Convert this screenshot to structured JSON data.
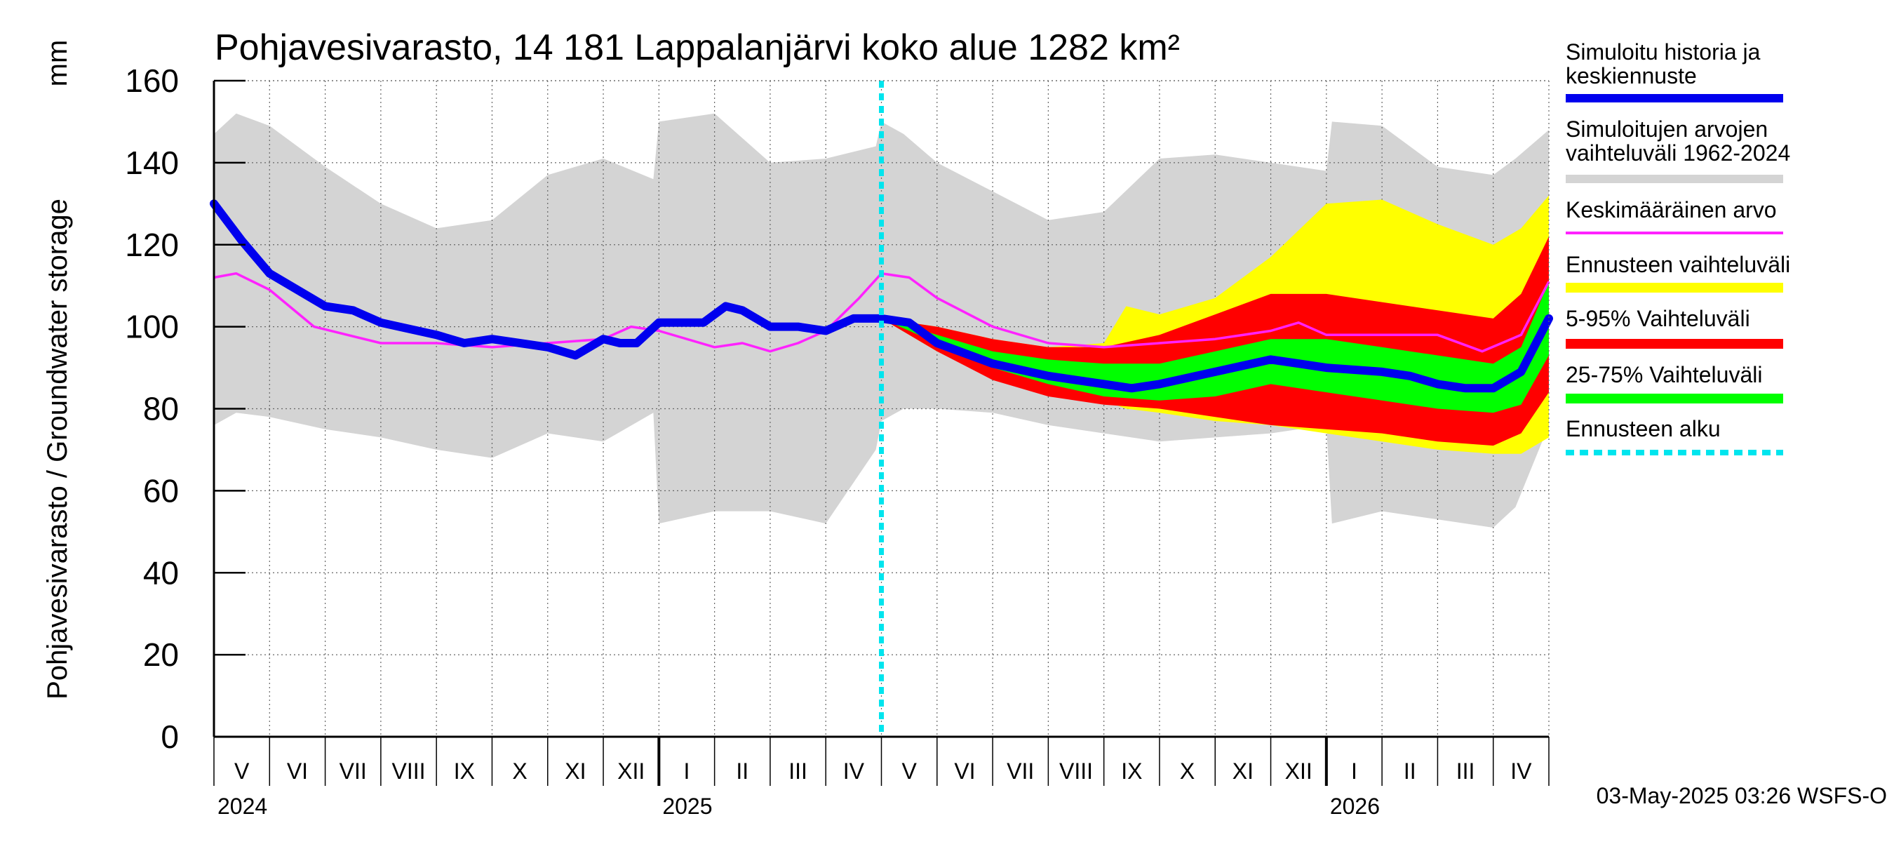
{
  "chart_data": {
    "type": "area",
    "title": "Pohjavesivarasto, 14 181 Lappalanjärvi koko alue 1282 km²",
    "ylabel": "Pohjavesivarasto / Groundwater storage",
    "yunit": "mm",
    "ylim": [
      0,
      160
    ],
    "yticks": [
      "0",
      "20",
      "40",
      "60",
      "80",
      "100",
      "120",
      "140",
      "160"
    ],
    "x_months": [
      "V",
      "VI",
      "VII",
      "VIII",
      "IX",
      "X",
      "XI",
      "XII",
      "I",
      "II",
      "III",
      "IV",
      "V",
      "VI",
      "VII",
      "VIII",
      "IX",
      "X",
      "XI",
      "XII",
      "I",
      "II",
      "III",
      "IV"
    ],
    "x_years": [
      "2024",
      "2025",
      "2026"
    ],
    "forecast_start_month_index": 12.0,
    "legend": [
      {
        "label": "Simuloitu historia ja\nkeskiennuste",
        "color": "#0000ee"
      },
      {
        "label": "Simuloitujen arvojen\nvaihteluväli 1962-2024",
        "color": "#d4d4d4"
      },
      {
        "label": "Keskimääräinen arvo",
        "color": "#ff22ff"
      },
      {
        "label": "Ennusteen vaihteluväli",
        "color": "#ffff00"
      },
      {
        "label": "5-95% Vaihteluväli",
        "color": "#ff0000"
      },
      {
        "label": "25-75% Vaihteluväli",
        "color": "#00ff00"
      },
      {
        "label": "Ennusteen alku",
        "color": "#00e5ee"
      }
    ],
    "timestamp": "03-May-2025 03:26 WSFS-O",
    "series": {
      "history_range": {
        "x": [
          0,
          0.4,
          1.0,
          2.0,
          3.0,
          4.0,
          5.0,
          6.0,
          7.0,
          7.9,
          8.0,
          9.0,
          10.0,
          11.0,
          11.9,
          12.0,
          12.4,
          13.0,
          14.0,
          15.0,
          16.0,
          17.0,
          18.0,
          19.0,
          20.0,
          20.1,
          21.0,
          22.0,
          23.0,
          23.4,
          24.0
        ],
        "upper": [
          147,
          152,
          149,
          139,
          130,
          124,
          126,
          137,
          141,
          136,
          150,
          152,
          140,
          141,
          144,
          150,
          147,
          140,
          133,
          126,
          128,
          141,
          142,
          140,
          138,
          150,
          149,
          139,
          137,
          141,
          148
        ],
        "lower": [
          76,
          79,
          78,
          75,
          73,
          70,
          68,
          74,
          72,
          79,
          52,
          55,
          55,
          52,
          70,
          77,
          80,
          80,
          79,
          76,
          74,
          72,
          73,
          74,
          76,
          52,
          55,
          53,
          51,
          56,
          76
        ]
      },
      "forecast_range": {
        "x": [
          12.0,
          13.0,
          14.0,
          15.0,
          16.0,
          16.4,
          17.0,
          18.0,
          19.0,
          20.0,
          21.0,
          22.0,
          23.0,
          23.5,
          24.0
        ],
        "upper": [
          102,
          100,
          97,
          95,
          96,
          105,
          103,
          107,
          117,
          130,
          131,
          125,
          120,
          124,
          132
        ],
        "lower": [
          102,
          94,
          88,
          84,
          82,
          80,
          79,
          77,
          76,
          74,
          72,
          70,
          69,
          69,
          73
        ]
      },
      "p5_95": {
        "x": [
          12.0,
          13.0,
          14.0,
          15.0,
          16.0,
          17.0,
          18.0,
          19.0,
          20.0,
          21.0,
          22.0,
          23.0,
          23.5,
          24.0
        ],
        "upper": [
          102,
          100,
          97,
          95,
          95,
          98,
          103,
          108,
          108,
          106,
          104,
          102,
          108,
          122
        ],
        "lower": [
          102,
          94,
          87,
          83,
          81,
          80,
          78,
          76,
          75,
          74,
          72,
          71,
          74,
          84
        ]
      },
      "p25_75": {
        "x": [
          12.0,
          13.0,
          14.0,
          15.0,
          16.0,
          17.0,
          18.0,
          19.0,
          20.0,
          21.0,
          22.0,
          23.0,
          23.5,
          24.0
        ],
        "upper": [
          102,
          98,
          94,
          92,
          91,
          91,
          94,
          97,
          97,
          95,
          93,
          91,
          95,
          111
        ],
        "lower": [
          102,
          96,
          90,
          86,
          83,
          82,
          83,
          86,
          84,
          82,
          80,
          79,
          81,
          93
        ]
      },
      "mean": {
        "x": [
          0,
          0.4,
          1.0,
          1.8,
          3.0,
          4.0,
          5.0,
          6.0,
          7.0,
          7.5,
          8.0,
          9.0,
          9.5,
          10.0,
          10.5,
          11.0,
          11.6,
          12.0,
          12.5,
          13.0,
          14.0,
          15.0,
          16.0,
          17.0,
          18.0,
          19.0,
          19.5,
          20.0,
          21.0,
          22.0,
          22.8,
          23.5,
          24.0
        ],
        "values": [
          112,
          113,
          109,
          100,
          96,
          96,
          95,
          96,
          97,
          100,
          99,
          95,
          96,
          94,
          96,
          99,
          107,
          113,
          112,
          107,
          100,
          96,
          95,
          96,
          97,
          99,
          101,
          98,
          98,
          98,
          94,
          98,
          111
        ]
      },
      "simulated": {
        "x": [
          0,
          0.5,
          1.0,
          2.0,
          2.5,
          3.0,
          4.0,
          4.5,
          5.0,
          6.0,
          6.5,
          7.0,
          7.3,
          7.6,
          8.0,
          8.8,
          9.2,
          9.5,
          10.0,
          10.5,
          11.0,
          11.5,
          12.0,
          12.5,
          13.0,
          14.0,
          15.0,
          16.0,
          16.5,
          17.0,
          18.0,
          19.0,
          19.5,
          20.0,
          21.0,
          21.5,
          22.0,
          22.5,
          23.0,
          23.5,
          24.0
        ],
        "values": [
          130,
          121,
          113,
          105,
          104,
          101,
          98,
          96,
          97,
          95,
          93,
          97,
          96,
          96,
          101,
          101,
          105,
          104,
          100,
          100,
          99,
          102,
          102,
          101,
          96,
          91,
          88,
          86,
          85,
          86,
          89,
          92,
          91,
          90,
          89,
          88,
          86,
          85,
          85,
          89,
          102
        ]
      }
    }
  }
}
